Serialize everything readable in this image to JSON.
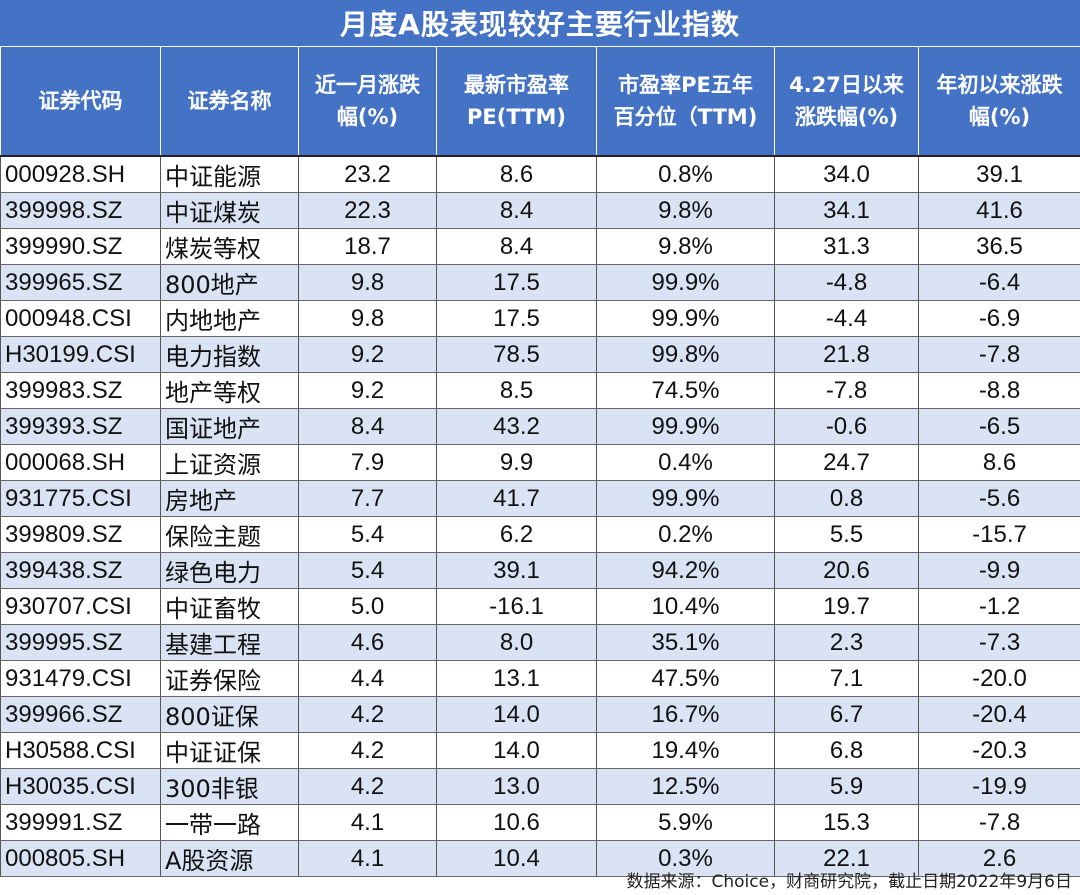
{
  "title": "月度A股表现较好主要行业指数",
  "headers": [
    {
      "line1": "证券代码",
      "line2": ""
    },
    {
      "line1": "证券名称",
      "line2": ""
    },
    {
      "line1": "近一月涨跌",
      "line2": "幅(%)"
    },
    {
      "line1": "最新市盈率",
      "line2": "PE(TTM)"
    },
    {
      "line1": "市盈率PE五年",
      "line2": "百分位（TTM)"
    },
    {
      "line1": "4.27日以来",
      "line2": "涨跌幅(%)"
    },
    {
      "line1": "年初以来涨跌",
      "line2": "幅(%)"
    }
  ],
  "rows": [
    {
      "code": "000928.SH",
      "name": "中证能源",
      "m1": "23.2",
      "pe": "8.6",
      "pct": "0.8%",
      "since427": "34.0",
      "ytd": "39.1"
    },
    {
      "code": "399998.SZ",
      "name": "中证煤炭",
      "m1": "22.3",
      "pe": "8.4",
      "pct": "9.8%",
      "since427": "34.1",
      "ytd": "41.6"
    },
    {
      "code": "399990.SZ",
      "name": "煤炭等权",
      "m1": "18.7",
      "pe": "8.4",
      "pct": "9.8%",
      "since427": "31.3",
      "ytd": "36.5"
    },
    {
      "code": "399965.SZ",
      "name": "800地产",
      "m1": "9.8",
      "pe": "17.5",
      "pct": "99.9%",
      "since427": "-4.8",
      "ytd": "-6.4"
    },
    {
      "code": "000948.CSI",
      "name": "内地地产",
      "m1": "9.8",
      "pe": "17.5",
      "pct": "99.9%",
      "since427": "-4.4",
      "ytd": "-6.9"
    },
    {
      "code": "H30199.CSI",
      "name": "电力指数",
      "m1": "9.2",
      "pe": "78.5",
      "pct": "99.8%",
      "since427": "21.8",
      "ytd": "-7.8"
    },
    {
      "code": "399983.SZ",
      "name": "地产等权",
      "m1": "9.2",
      "pe": "8.5",
      "pct": "74.5%",
      "since427": "-7.8",
      "ytd": "-8.8"
    },
    {
      "code": "399393.SZ",
      "name": "国证地产",
      "m1": "8.4",
      "pe": "43.2",
      "pct": "99.9%",
      "since427": "-0.6",
      "ytd": "-6.5"
    },
    {
      "code": "000068.SH",
      "name": "上证资源",
      "m1": "7.9",
      "pe": "9.9",
      "pct": "0.4%",
      "since427": "24.7",
      "ytd": "8.6"
    },
    {
      "code": "931775.CSI",
      "name": "房地产",
      "m1": "7.7",
      "pe": "41.7",
      "pct": "99.9%",
      "since427": "0.8",
      "ytd": "-5.6"
    },
    {
      "code": "399809.SZ",
      "name": "保险主题",
      "m1": "5.4",
      "pe": "6.2",
      "pct": "0.2%",
      "since427": "5.5",
      "ytd": "-15.7"
    },
    {
      "code": "399438.SZ",
      "name": "绿色电力",
      "m1": "5.4",
      "pe": "39.1",
      "pct": "94.2%",
      "since427": "20.6",
      "ytd": "-9.9"
    },
    {
      "code": "930707.CSI",
      "name": "中证畜牧",
      "m1": "5.0",
      "pe": "-16.1",
      "pct": "10.4%",
      "since427": "19.7",
      "ytd": "-1.2"
    },
    {
      "code": "399995.SZ",
      "name": "基建工程",
      "m1": "4.6",
      "pe": "8.0",
      "pct": "35.1%",
      "since427": "2.3",
      "ytd": "-7.3"
    },
    {
      "code": "931479.CSI",
      "name": "证券保险",
      "m1": "4.4",
      "pe": "13.1",
      "pct": "47.5%",
      "since427": "7.1",
      "ytd": "-20.0"
    },
    {
      "code": "399966.SZ",
      "name": "800证保",
      "m1": "4.2",
      "pe": "14.0",
      "pct": "16.7%",
      "since427": "6.7",
      "ytd": "-20.4"
    },
    {
      "code": "H30588.CSI",
      "name": "中证证保",
      "m1": "4.2",
      "pe": "14.0",
      "pct": "19.4%",
      "since427": "6.8",
      "ytd": "-20.3"
    },
    {
      "code": "H30035.CSI",
      "name": "300非银",
      "m1": "4.2",
      "pe": "13.0",
      "pct": "12.5%",
      "since427": "5.9",
      "ytd": "-19.9"
    },
    {
      "code": "399991.SZ",
      "name": "一带一路",
      "m1": "4.1",
      "pe": "10.6",
      "pct": "5.9%",
      "since427": "15.3",
      "ytd": "-7.8"
    },
    {
      "code": "000805.SH",
      "name": "A股资源",
      "m1": "4.1",
      "pe": "10.4",
      "pct": "0.3%",
      "since427": "22.1",
      "ytd": "2.6"
    }
  ],
  "source": "数据来源：Choice，财商研究院，截止日期2022年9月6日",
  "colors": {
    "header_bg": "#4472c4",
    "row_alt_bg": "#dae3f3"
  }
}
